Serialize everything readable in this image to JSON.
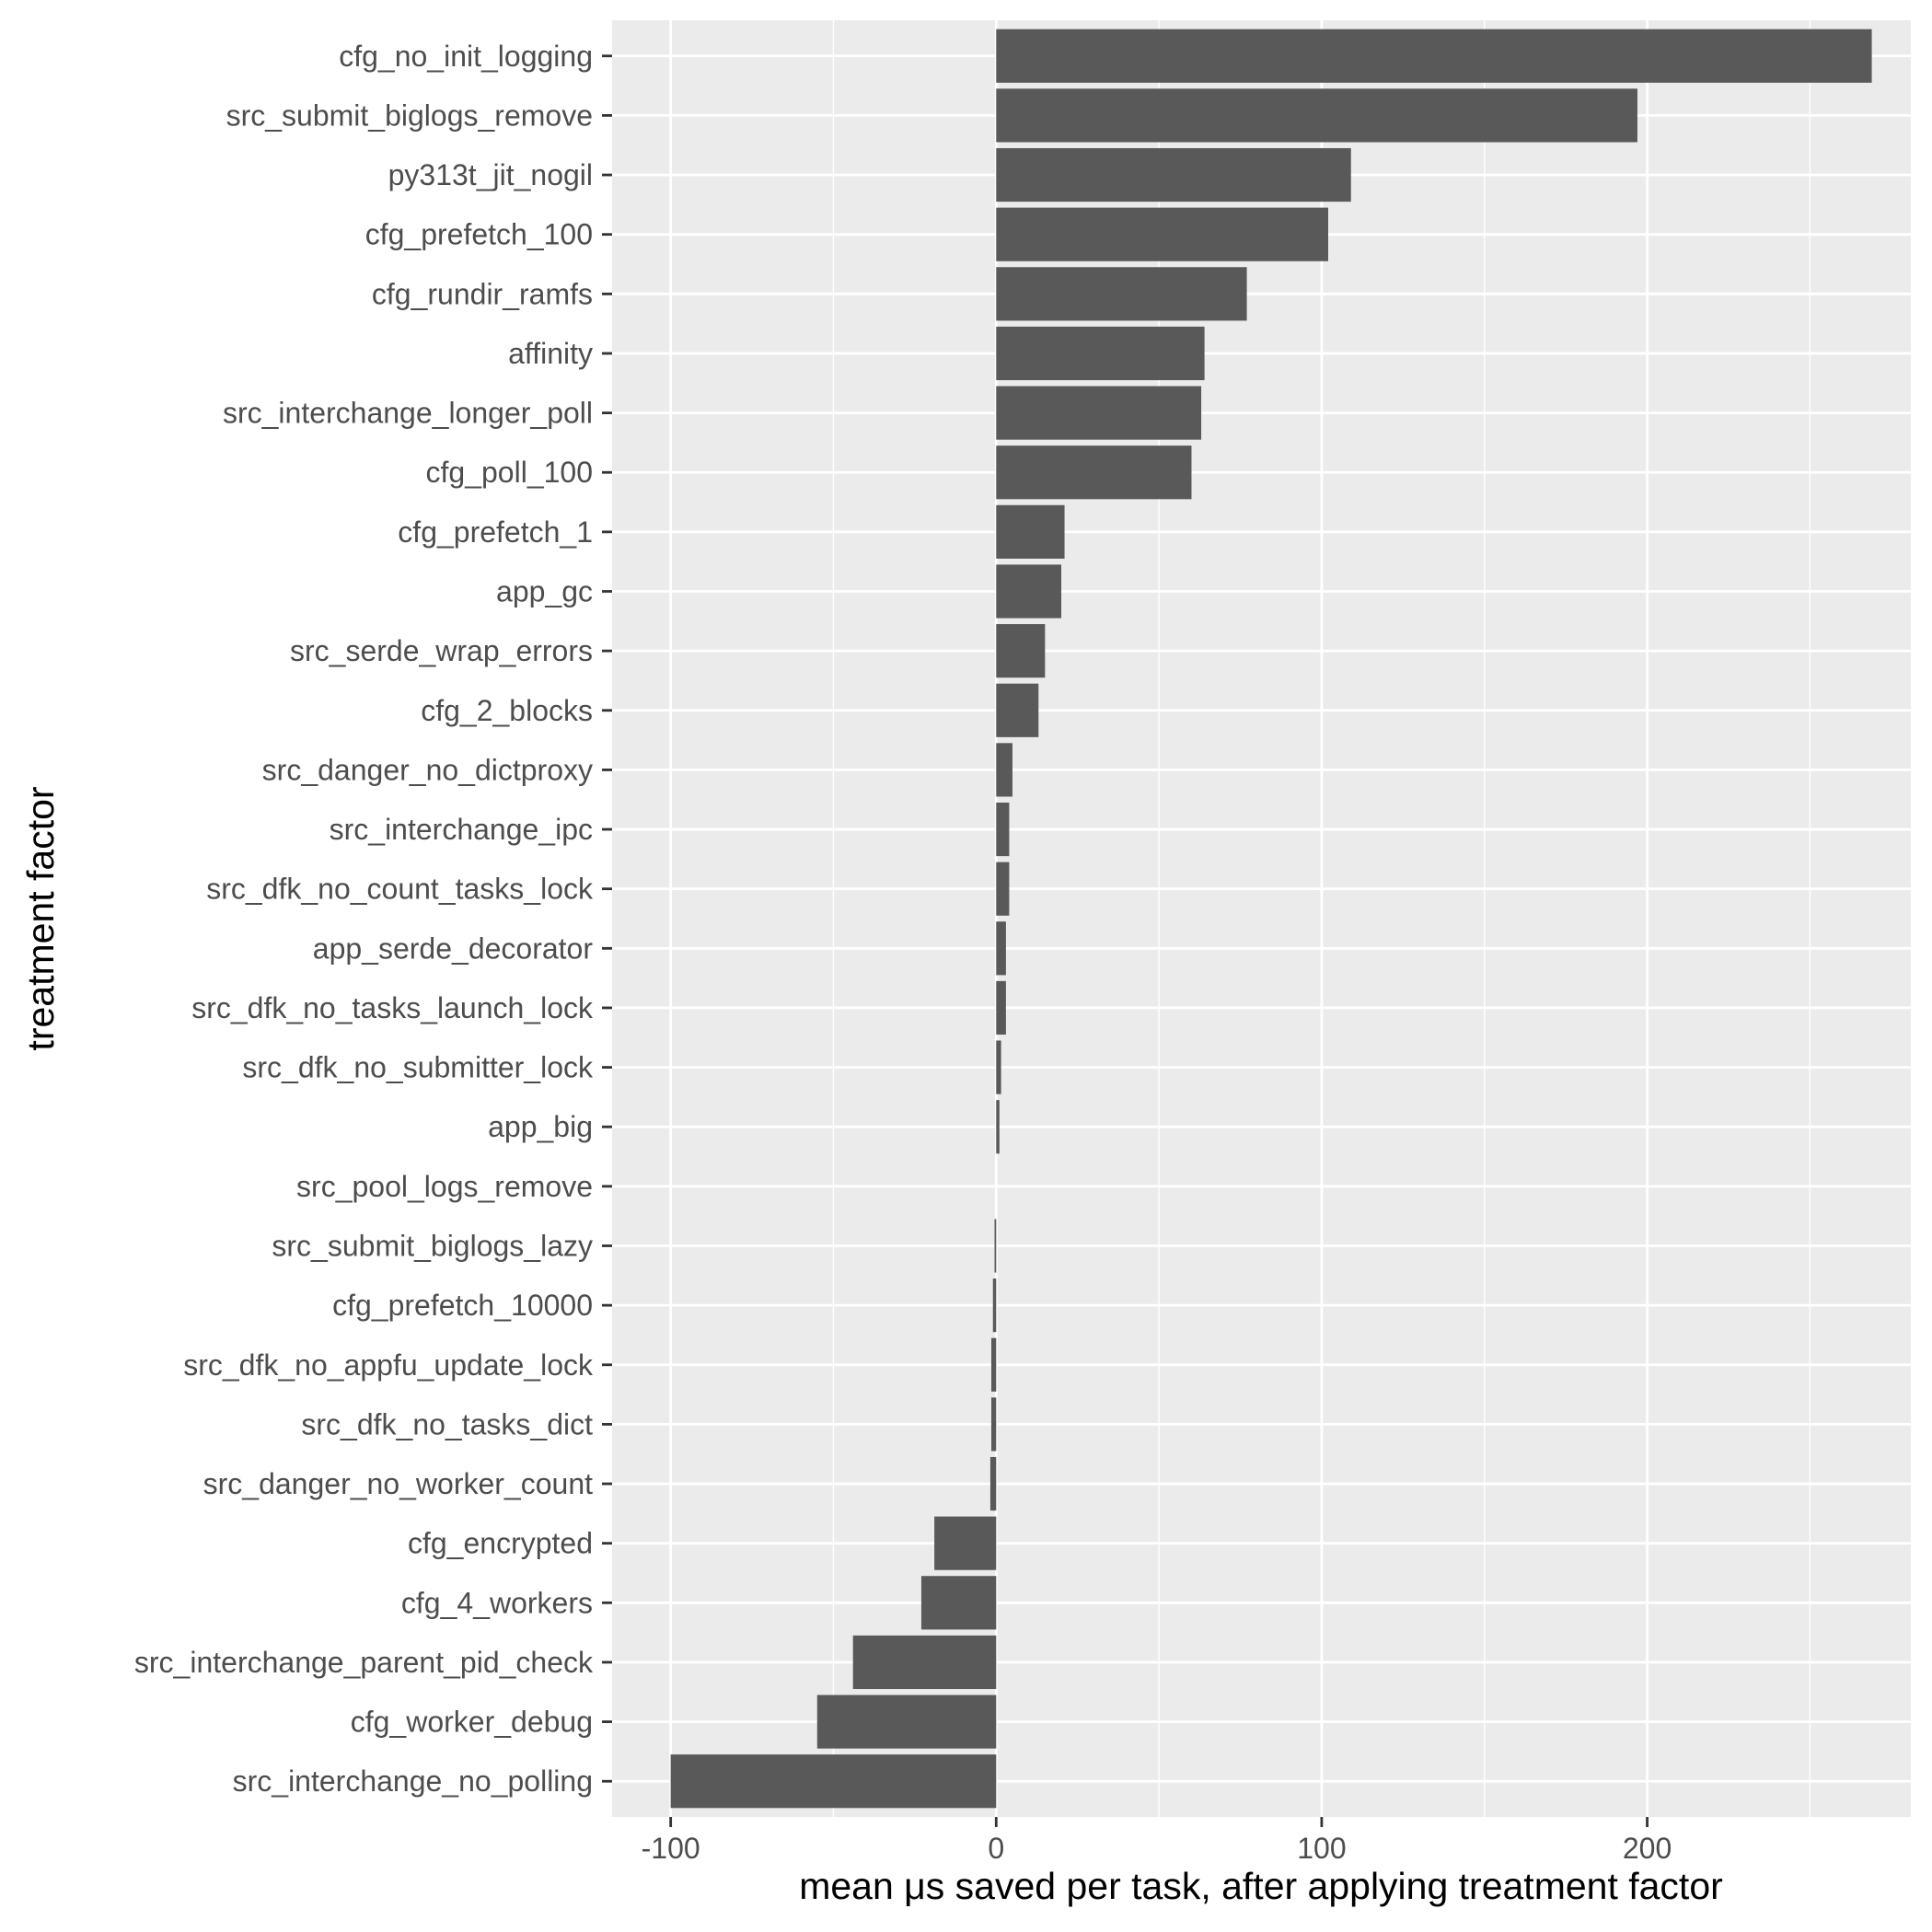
{
  "chart_data": {
    "type": "bar",
    "orientation": "horizontal",
    "title": "",
    "xlabel": "mean μs saved per task, after applying treatment factor",
    "ylabel": "treatment factor",
    "xlim": [
      -118,
      281
    ],
    "xticks": [
      -100,
      0,
      100,
      200
    ],
    "xtick_labels": [
      "-100",
      "0",
      "100",
      "200"
    ],
    "grid": true,
    "background_color": "#ebebeb",
    "bar_color": "#595959",
    "grid_color": "#ffffff",
    "categories": [
      "cfg_no_init_logging",
      "src_submit_biglogs_remove",
      "py313t_jit_nogil",
      "cfg_prefetch_100",
      "cfg_rundir_ramfs",
      "affinity",
      "src_interchange_longer_poll",
      "cfg_poll_100",
      "cfg_prefetch_1",
      "app_gc",
      "src_serde_wrap_errors",
      "cfg_2_blocks",
      "src_danger_no_dictproxy",
      "src_interchange_ipc",
      "src_dfk_no_count_tasks_lock",
      "app_serde_decorator",
      "src_dfk_no_tasks_launch_lock",
      "src_dfk_no_submitter_lock",
      "app_big",
      "src_pool_logs_remove",
      "src_submit_biglogs_lazy",
      "cfg_prefetch_10000",
      "src_dfk_no_appfu_update_lock",
      "src_dfk_no_tasks_dict",
      "src_danger_no_worker_count",
      "cfg_encrypted",
      "cfg_4_workers",
      "src_interchange_parent_pid_check",
      "cfg_worker_debug",
      "src_interchange_no_polling"
    ],
    "values": [
      269,
      197,
      109,
      102,
      77,
      64,
      63,
      60,
      21,
      20,
      15,
      13,
      5,
      4,
      4,
      3,
      3,
      1.5,
      1,
      0,
      -0.5,
      -1,
      -1.5,
      -1.5,
      -1.8,
      -19,
      -23,
      -44,
      -55,
      -100
    ]
  }
}
